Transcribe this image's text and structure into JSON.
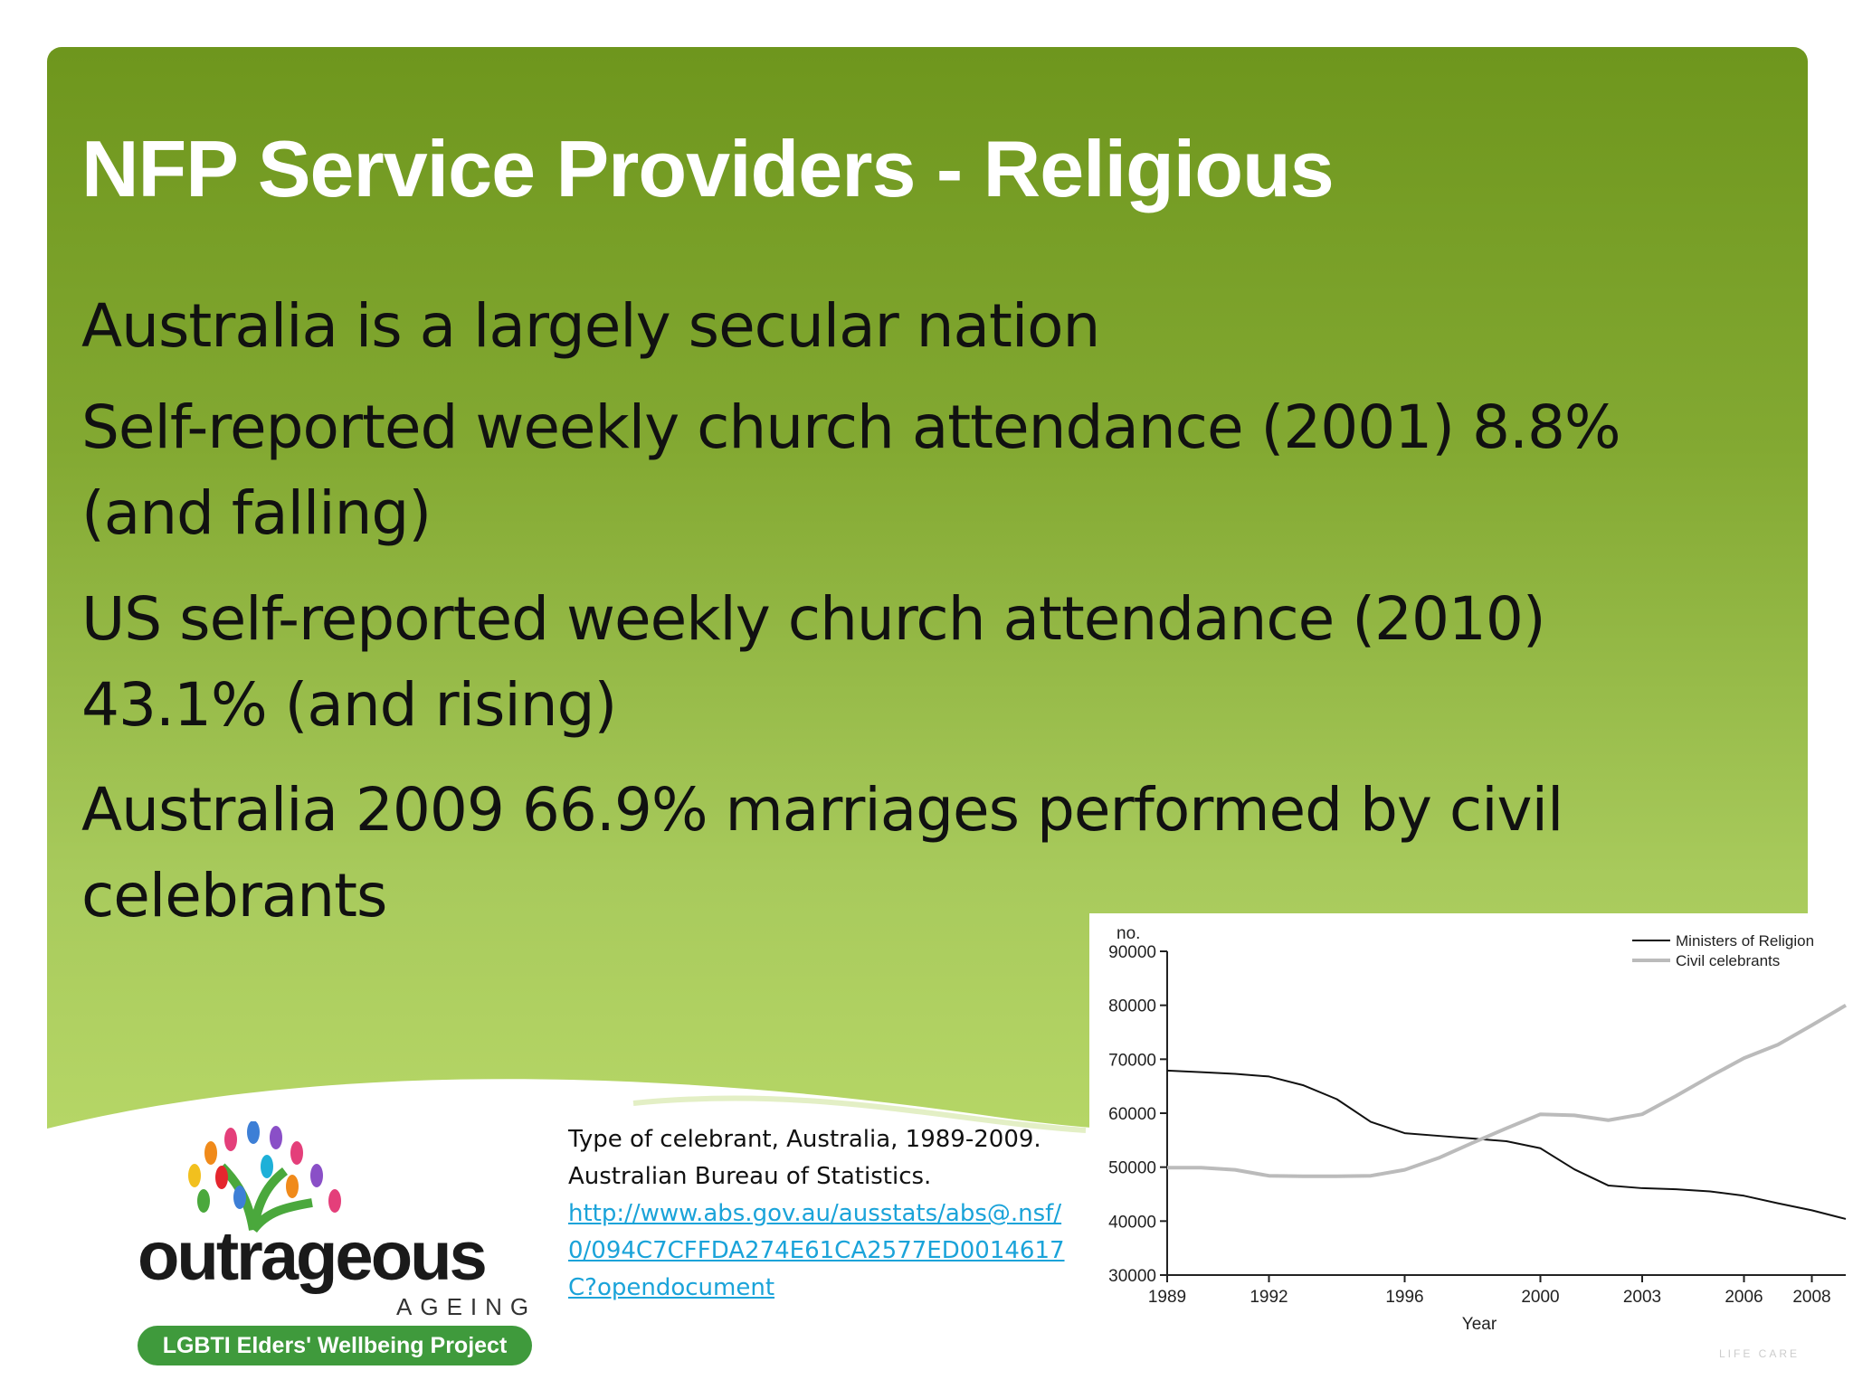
{
  "slide": {
    "title": "NFP Service Providers - Religious",
    "bullets": [
      "Australia is a largely secular nation",
      "Self-reported weekly church attendance (2001) 8.8% (and falling)",
      "US self-reported weekly church attendance (2010) 43.1% (and rising)",
      "Australia 2009 66.9% marriages performed by civil celebrants"
    ],
    "logo": {
      "name_text": "outrageous",
      "sub_text": "AGEING",
      "banner_text": "LGBTI Elders' Wellbeing Project"
    },
    "source": {
      "caption": "Type of celebrant,  Australia, 1989-2009.  Australian Bureau of Statistics.",
      "link": "http://www.abs.gov.au/ausstats/abs@.nsf/0/094C7CFFDA274E61CA2577ED0014617C?opendocument"
    },
    "footer_text": "LIFE CARE"
  },
  "colors": {
    "accent_green": "#7aa22a",
    "ministers_line": "#111111",
    "celebrants_line": "#bbbbbb",
    "link_blue": "#1aa3d9"
  },
  "chart_data": {
    "type": "line",
    "ylabel": "no.",
    "xlabel": "Year",
    "ylim": [
      30000,
      90000
    ],
    "xlim": [
      1989,
      2009
    ],
    "y_ticks": [
      30000,
      40000,
      50000,
      60000,
      70000,
      80000,
      90000
    ],
    "y_tick_labels": [
      "30000",
      "40000",
      "50000",
      "60000",
      "70000",
      "80000",
      "90000"
    ],
    "x_ticks": [
      1989,
      1992,
      1996,
      2000,
      2003,
      2006,
      2008
    ],
    "x_tick_labels": [
      "1989",
      "1992",
      "1996",
      "2000",
      "2003",
      "2006",
      "2008"
    ],
    "legend_position": "top-right",
    "x": [
      1989,
      1990,
      1991,
      1992,
      1993,
      1994,
      1995,
      1996,
      1997,
      1998,
      1999,
      2000,
      2001,
      2002,
      2003,
      2004,
      2005,
      2006,
      2007,
      2008,
      2009
    ],
    "series": [
      {
        "name": "Ministers of Religion",
        "values": [
          67900,
          67600,
          67300,
          66800,
          65200,
          62600,
          58400,
          56300,
          55800,
          55300,
          54800,
          53500,
          49600,
          46600,
          46100,
          45900,
          45500,
          44700,
          43300,
          42000,
          40400
        ]
      },
      {
        "name": "Civil celebrants",
        "values": [
          49900,
          49900,
          49500,
          48400,
          48300,
          48300,
          48400,
          49500,
          51700,
          54500,
          57200,
          59800,
          59600,
          58700,
          59800,
          63200,
          66800,
          70200,
          72700,
          76300,
          80000
        ]
      }
    ]
  }
}
